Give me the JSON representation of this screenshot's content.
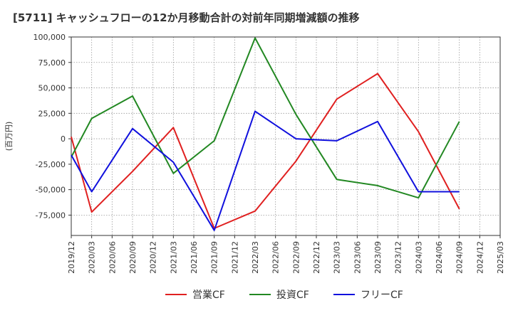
{
  "chart_data": {
    "type": "line",
    "title": "[5711]  キャッシュフローの12か月移動合計の対前年同期増減額の推移",
    "ylabel": "(百万円)",
    "xlabel": "",
    "ylim": [
      -95000,
      100000
    ],
    "yticks": [
      100000,
      75000,
      50000,
      25000,
      0,
      -25000,
      -50000,
      -75000
    ],
    "ytick_labels": [
      "100,000",
      "75,000",
      "50,000",
      "25,000",
      "0",
      "-25,000",
      "-50,000",
      "-75,000"
    ],
    "categories": [
      "2019/12",
      "2020/03",
      "2020/06",
      "2020/09",
      "2020/12",
      "2021/03",
      "2021/06",
      "2021/09",
      "2021/12",
      "2022/03",
      "2022/06",
      "2022/09",
      "2022/12",
      "2023/03",
      "2023/06",
      "2023/09",
      "2023/12",
      "2024/03",
      "2024/06",
      "2024/09",
      "2024/12",
      "2025/03"
    ],
    "grid": true,
    "legend_position": "bottom",
    "series": [
      {
        "name": "営業CF",
        "color": "#e02020",
        "values": [
          2000,
          -72000,
          null,
          -32000,
          null,
          11000,
          null,
          -88000,
          null,
          -71000,
          null,
          -22000,
          null,
          39000,
          null,
          64000,
          null,
          7000,
          null,
          -69000,
          null,
          null
        ]
      },
      {
        "name": "投資CF",
        "color": "#228822",
        "values": [
          -18000,
          20000,
          null,
          42000,
          null,
          -34000,
          null,
          -2000,
          null,
          99000,
          null,
          24000,
          null,
          -40000,
          null,
          -46000,
          null,
          -58000,
          null,
          17000,
          null,
          null
        ]
      },
      {
        "name": "フリーCF",
        "color": "#1010dd",
        "values": [
          -16000,
          -52000,
          null,
          10000,
          null,
          -23000,
          null,
          -90000,
          null,
          27000,
          null,
          0,
          null,
          -2000,
          null,
          17000,
          null,
          -52000,
          null,
          -52000,
          null,
          null
        ]
      }
    ]
  }
}
